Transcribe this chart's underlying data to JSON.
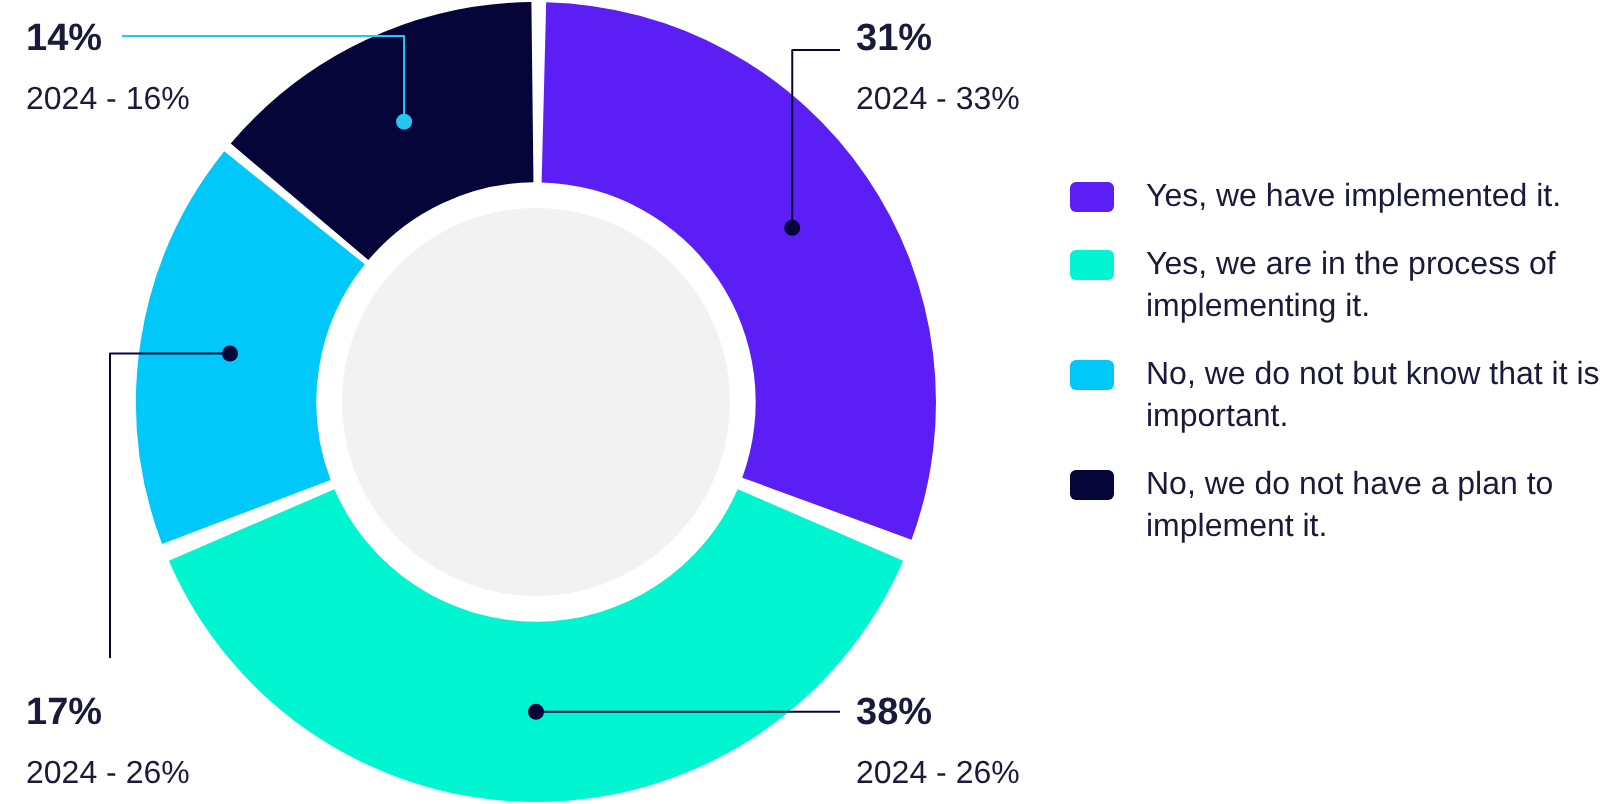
{
  "chart_data": {
    "type": "donut",
    "categories": [
      "Yes, we have implemented it.",
      "Yes, we are in the process of implementing it.",
      "No, we do not but know that it is important.",
      "No, we do not have a plan to implement it."
    ],
    "values": [
      31,
      38,
      17,
      14
    ],
    "colors": [
      "#5b1ff5",
      "#00f5d0",
      "#00c8f8",
      "#05053a"
    ],
    "value_labels": [
      "31%",
      "38%",
      "17%",
      "14%"
    ],
    "annotations": [
      "2024 - 33%",
      "2024 - 26%",
      "2024 - 26%",
      "2024 - 16%"
    ],
    "legend": "right"
  }
}
